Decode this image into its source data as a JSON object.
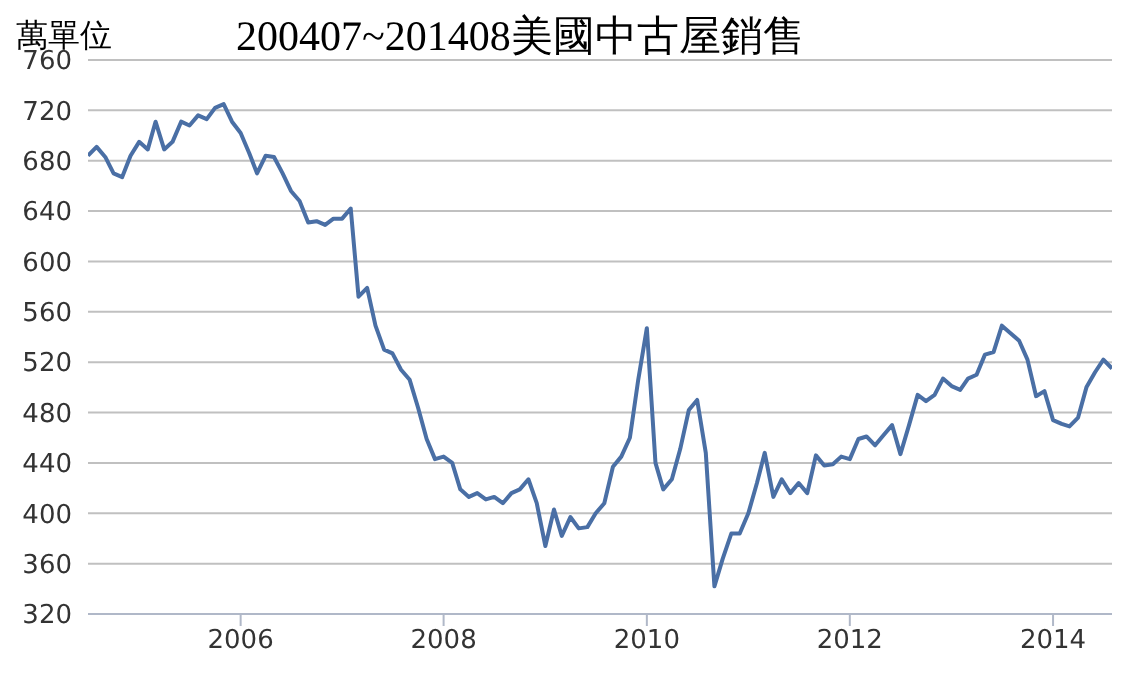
{
  "chart_data": {
    "type": "line",
    "title": "200407~201408美國中古屋銷售",
    "ylabel": "萬單位",
    "x": [
      "2004-07",
      "2004-08",
      "2004-09",
      "2004-10",
      "2004-11",
      "2004-12",
      "2005-01",
      "2005-02",
      "2005-03",
      "2005-04",
      "2005-05",
      "2005-06",
      "2005-07",
      "2005-08",
      "2005-09",
      "2005-10",
      "2005-11",
      "2005-12",
      "2006-01",
      "2006-02",
      "2006-03",
      "2006-04",
      "2006-05",
      "2006-06",
      "2006-07",
      "2006-08",
      "2006-09",
      "2006-10",
      "2006-11",
      "2006-12",
      "2007-01",
      "2007-02",
      "2007-03",
      "2007-04",
      "2007-05",
      "2007-06",
      "2007-07",
      "2007-08",
      "2007-09",
      "2007-10",
      "2007-11",
      "2007-12",
      "2008-01",
      "2008-02",
      "2008-03",
      "2008-04",
      "2008-05",
      "2008-06",
      "2008-07",
      "2008-08",
      "2008-09",
      "2008-10",
      "2008-11",
      "2008-12",
      "2009-01",
      "2009-02",
      "2009-03",
      "2009-04",
      "2009-05",
      "2009-06",
      "2009-07",
      "2009-08",
      "2009-09",
      "2009-10",
      "2009-11",
      "2009-12",
      "2010-01",
      "2010-02",
      "2010-03",
      "2010-04",
      "2010-05",
      "2010-06",
      "2010-07",
      "2010-08",
      "2010-09",
      "2010-10",
      "2010-11",
      "2010-12",
      "2011-01",
      "2011-02",
      "2011-03",
      "2011-04",
      "2011-05",
      "2011-06",
      "2011-07",
      "2011-08",
      "2011-09",
      "2011-10",
      "2011-11",
      "2011-12",
      "2012-01",
      "2012-02",
      "2012-03",
      "2012-04",
      "2012-05",
      "2012-06",
      "2012-07",
      "2012-08",
      "2012-09",
      "2012-10",
      "2012-11",
      "2012-12",
      "2013-01",
      "2013-02",
      "2013-03",
      "2013-04",
      "2013-05",
      "2013-06",
      "2013-07",
      "2013-08",
      "2013-09",
      "2013-10",
      "2013-11",
      "2013-12",
      "2014-01",
      "2014-02",
      "2014-03",
      "2014-04",
      "2014-05",
      "2014-06",
      "2014-07",
      "2014-08"
    ],
    "series": [
      {
        "color": "#4a6fa5",
        "values": [
          684,
          691,
          683,
          670,
          667,
          684,
          695,
          689,
          711,
          689,
          695,
          711,
          708,
          716,
          713,
          722,
          725,
          711,
          702,
          686,
          670,
          684,
          683,
          670,
          656,
          648,
          631,
          632,
          629,
          634,
          634,
          642,
          572,
          579,
          549,
          530,
          527,
          514,
          506,
          484,
          459,
          443,
          445,
          440,
          419,
          413,
          416,
          411,
          413,
          408,
          416,
          419,
          427,
          408,
          374,
          403,
          382,
          397,
          388,
          389,
          400,
          408,
          437,
          445,
          460,
          506,
          547,
          440,
          419,
          427,
          451,
          482,
          490,
          448,
          342,
          364,
          384,
          384,
          400,
          424,
          448,
          413,
          427,
          416,
          424,
          416,
          446,
          438,
          439,
          445,
          443,
          459,
          461,
          454,
          462,
          470,
          447,
          470,
          494,
          489,
          494,
          507,
          501,
          498,
          507,
          510,
          526,
          528,
          549,
          543,
          537,
          522,
          493,
          497,
          474,
          471,
          469,
          476,
          500,
          512,
          522,
          515
        ]
      }
    ],
    "xlim": [
      "2004-07",
      "2014-08"
    ],
    "xticks": [
      "2006",
      "2008",
      "2010",
      "2012",
      "2014"
    ],
    "ylim": [
      320,
      760
    ],
    "yticks": [
      320,
      360,
      400,
      440,
      480,
      520,
      560,
      600,
      640,
      680,
      720,
      760
    ],
    "grid": "y",
    "legend": false,
    "marker": "none",
    "line_style": "solid"
  }
}
